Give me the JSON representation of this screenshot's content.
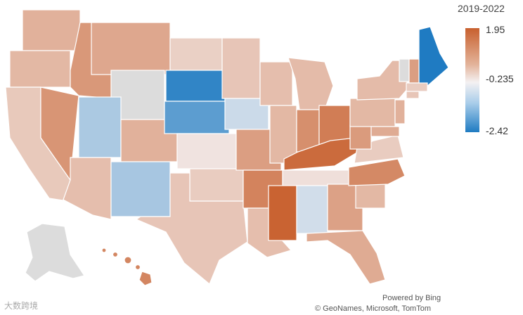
{
  "legend": {
    "title": "2019-2022",
    "max_label": "1.95",
    "mid_label": "-0.235",
    "min_label": "-2.42",
    "max": 1.95,
    "mid": -0.235,
    "min": -2.42
  },
  "attribution": {
    "line1": "Powered by Bing",
    "line2": "© GeoNames, Microsoft, TomTom"
  },
  "watermark": "大数跨境",
  "colors": {
    "high": "#c8602e",
    "mid": "#f4f1f2",
    "low": "#1f7bc2",
    "no_data": "#dcdcdc"
  },
  "states": [
    {
      "name": "WA",
      "value": 0.6
    },
    {
      "name": "OR",
      "value": 0.5
    },
    {
      "name": "CA",
      "value": 0.25
    },
    {
      "name": "NV",
      "value": 1.05
    },
    {
      "name": "ID",
      "value": 1.0
    },
    {
      "name": "MT",
      "value": 0.75
    },
    {
      "name": "WY",
      "value": null
    },
    {
      "name": "UT",
      "value": -0.85
    },
    {
      "name": "CO",
      "value": 0.6
    },
    {
      "name": "AZ",
      "value": 0.4
    },
    {
      "name": "NM",
      "value": -0.9
    },
    {
      "name": "ND",
      "value": 0.15
    },
    {
      "name": "SD",
      "value": -2.2
    },
    {
      "name": "NE",
      "value": -1.7
    },
    {
      "name": "KS",
      "value": -0.1
    },
    {
      "name": "OK",
      "value": 0.2
    },
    {
      "name": "TX",
      "value": 0.3
    },
    {
      "name": "MN",
      "value": 0.3
    },
    {
      "name": "IA",
      "value": -0.55
    },
    {
      "name": "MO",
      "value": 0.9
    },
    {
      "name": "AR",
      "value": 1.35
    },
    {
      "name": "LA",
      "value": 0.4
    },
    {
      "name": "WI",
      "value": 0.4
    },
    {
      "name": "IL",
      "value": 0.5
    },
    {
      "name": "MI",
      "value": 0.45
    },
    {
      "name": "IN",
      "value": 1.15
    },
    {
      "name": "OH",
      "value": 1.45
    },
    {
      "name": "KY",
      "value": 1.75
    },
    {
      "name": "TN",
      "value": -0.05
    },
    {
      "name": "MS",
      "value": 1.9
    },
    {
      "name": "AL",
      "value": -0.5
    },
    {
      "name": "GA",
      "value": 0.85
    },
    {
      "name": "FL",
      "value": 0.7
    },
    {
      "name": "SC",
      "value": 0.5
    },
    {
      "name": "NC",
      "value": 1.25
    },
    {
      "name": "VA",
      "value": 0.2
    },
    {
      "name": "WV",
      "value": 0.95
    },
    {
      "name": "PA",
      "value": 0.5
    },
    {
      "name": "NY",
      "value": 0.45
    },
    {
      "name": "VT",
      "value": null
    },
    {
      "name": "NH",
      "value": 0.9
    },
    {
      "name": "ME",
      "value": -2.42
    },
    {
      "name": "MA",
      "value": 0.2
    },
    {
      "name": "CT",
      "value": 0.3
    },
    {
      "name": "NJ",
      "value": 0.6
    },
    {
      "name": "MD",
      "value": 0.7
    },
    {
      "name": "AK",
      "value": null
    },
    {
      "name": "HI",
      "value": 1.3
    }
  ]
}
